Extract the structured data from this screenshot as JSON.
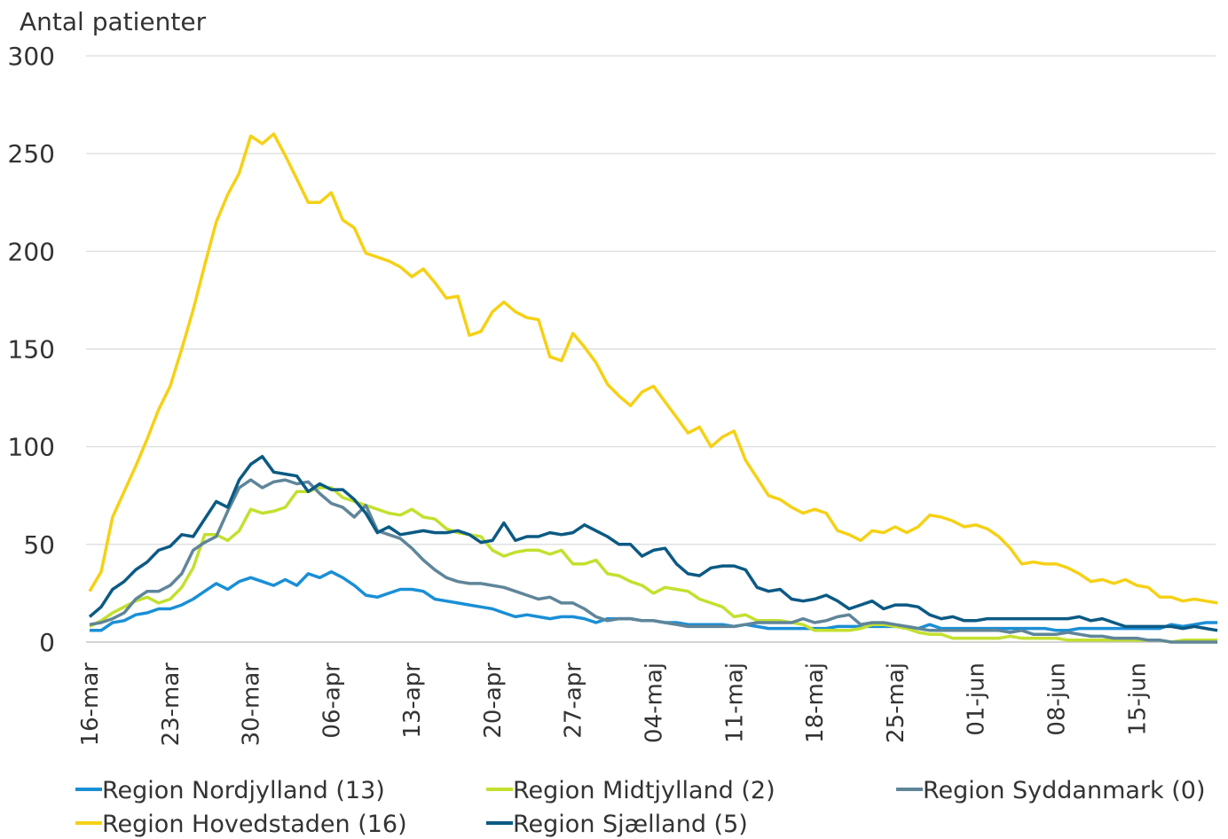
{
  "chart_data": {
    "type": "line",
    "y_label": "Antal patienter",
    "categories": [
      "16-mar",
      null,
      null,
      null,
      null,
      null,
      null,
      "23-mar",
      null,
      null,
      null,
      null,
      null,
      null,
      "30-mar",
      null,
      null,
      null,
      null,
      null,
      null,
      "06-apr",
      null,
      null,
      null,
      null,
      null,
      null,
      "13-apr",
      null,
      null,
      null,
      null,
      null,
      null,
      "20-apr",
      null,
      null,
      null,
      null,
      null,
      null,
      "27-apr",
      null,
      null,
      null,
      null,
      null,
      null,
      "04-maj",
      null,
      null,
      null,
      null,
      null,
      null,
      "11-maj",
      null,
      null,
      null,
      null,
      null,
      null,
      "18-maj",
      null,
      null,
      null,
      null,
      null,
      null,
      "25-maj",
      null,
      null,
      null,
      null,
      null,
      null,
      "01-jun",
      null,
      null,
      null,
      null,
      null,
      null,
      "08-jun",
      null,
      null,
      null,
      null,
      null,
      null,
      "15-jun",
      null,
      null,
      null,
      null,
      null,
      null,
      null
    ],
    "series": [
      {
        "name": "Region Nordjylland (13)",
        "color": "#1a8fd6",
        "values": [
          6,
          6,
          10,
          11,
          14,
          15,
          17,
          17,
          19,
          22,
          26,
          30,
          27,
          31,
          33,
          31,
          29,
          32,
          29,
          35,
          33,
          36,
          33,
          29,
          24,
          23,
          25,
          27,
          27,
          26,
          22,
          21,
          20,
          19,
          18,
          17,
          15,
          13,
          14,
          13,
          12,
          13,
          13,
          12,
          10,
          12,
          12,
          12,
          11,
          11,
          10,
          10,
          9,
          9,
          9,
          9,
          8,
          9,
          8,
          7,
          7,
          7,
          7,
          7,
          7,
          8,
          8,
          8,
          8,
          8,
          8,
          8,
          7,
          9,
          7,
          7,
          7,
          7,
          7,
          7,
          7,
          7,
          7,
          7,
          6,
          6,
          7,
          7,
          7,
          7,
          7,
          7,
          7,
          7,
          9,
          8,
          9,
          10,
          10
        ]
      },
      {
        "name": "Region Midtjylland (2)",
        "color": "#c3e02e",
        "values": [
          8,
          11,
          15,
          18,
          21,
          23,
          20,
          22,
          28,
          38,
          55,
          55,
          52,
          57,
          68,
          66,
          67,
          69,
          77,
          77,
          79,
          79,
          74,
          72,
          70,
          68,
          66,
          65,
          68,
          64,
          63,
          58,
          56,
          55,
          54,
          47,
          44,
          46,
          47,
          47,
          45,
          47,
          40,
          40,
          42,
          35,
          34,
          31,
          29,
          25,
          28,
          27,
          26,
          22,
          20,
          18,
          13,
          14,
          11,
          11,
          11,
          10,
          9,
          6,
          6,
          6,
          6,
          7,
          9,
          9,
          8,
          7,
          5,
          4,
          4,
          2,
          2,
          2,
          2,
          2,
          3,
          2,
          2,
          2,
          2,
          1,
          1,
          1,
          1,
          1,
          1,
          1,
          1,
          1,
          0,
          1,
          1,
          1,
          1
        ]
      },
      {
        "name": "Region Syddanmark (0)",
        "color": "#5f8599",
        "values": [
          9,
          10,
          12,
          15,
          22,
          26,
          26,
          29,
          35,
          47,
          51,
          54,
          67,
          79,
          83,
          79,
          82,
          83,
          81,
          82,
          76,
          71,
          69,
          64,
          70,
          57,
          55,
          53,
          48,
          42,
          37,
          33,
          31,
          30,
          30,
          29,
          28,
          26,
          24,
          22,
          23,
          20,
          20,
          17,
          13,
          11,
          12,
          12,
          11,
          11,
          10,
          9,
          8,
          8,
          8,
          8,
          8,
          9,
          10,
          10,
          10,
          10,
          12,
          10,
          11,
          13,
          14,
          9,
          10,
          10,
          9,
          8,
          7,
          6,
          6,
          6,
          6,
          6,
          6,
          6,
          5,
          6,
          4,
          4,
          4,
          5,
          4,
          3,
          3,
          2,
          2,
          2,
          1,
          1,
          0,
          0,
          0,
          0,
          0
        ]
      },
      {
        "name": "Region Hovedstaden (16)",
        "color": "#f5d116",
        "values": [
          26,
          36,
          64,
          77,
          90,
          104,
          119,
          131,
          150,
          170,
          193,
          215,
          229,
          240,
          259,
          255,
          260,
          249,
          237,
          225,
          225,
          230,
          216,
          212,
          199,
          197,
          195,
          192,
          187,
          191,
          184,
          176,
          177,
          157,
          159,
          169,
          174,
          169,
          166,
          165,
          146,
          144,
          158,
          151,
          143,
          132,
          126,
          121,
          128,
          131,
          123,
          115,
          107,
          110,
          100,
          105,
          108,
          93,
          84,
          75,
          73,
          69,
          66,
          68,
          66,
          57,
          55,
          52,
          57,
          56,
          59,
          56,
          59,
          65,
          64,
          62,
          59,
          60,
          58,
          54,
          48,
          40,
          41,
          40,
          40,
          38,
          35,
          31,
          32,
          30,
          32,
          29,
          28,
          23,
          23,
          21,
          22,
          21,
          20
        ]
      },
      {
        "name": "Region Sjælland (5)",
        "color": "#0b5a84",
        "values": [
          13,
          18,
          27,
          31,
          37,
          41,
          47,
          49,
          55,
          54,
          63,
          72,
          69,
          83,
          91,
          95,
          87,
          86,
          85,
          77,
          81,
          78,
          78,
          73,
          66,
          56,
          59,
          55,
          56,
          57,
          56,
          56,
          57,
          55,
          51,
          52,
          61,
          52,
          54,
          54,
          56,
          55,
          56,
          60,
          57,
          54,
          50,
          50,
          44,
          47,
          48,
          40,
          35,
          34,
          38,
          39,
          39,
          37,
          28,
          26,
          27,
          22,
          21,
          22,
          24,
          21,
          17,
          19,
          21,
          17,
          19,
          19,
          18,
          14,
          12,
          13,
          11,
          11,
          12,
          12,
          12,
          12,
          12,
          12,
          12,
          12,
          13,
          11,
          12,
          10,
          8,
          8,
          8,
          8,
          8,
          7,
          8,
          7,
          6
        ]
      }
    ],
    "ylim": [
      0,
      300
    ],
    "yticks": [
      0,
      50,
      100,
      150,
      200,
      250,
      300
    ],
    "grid": true
  }
}
